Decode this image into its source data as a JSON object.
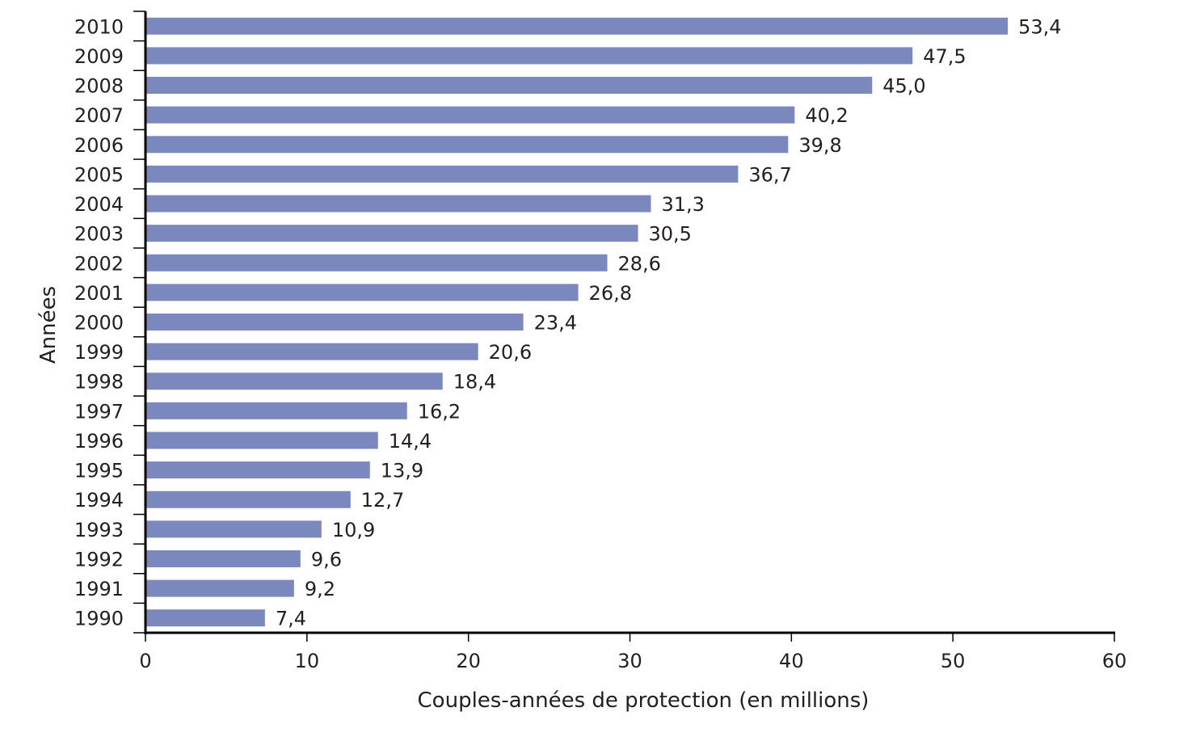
{
  "chart_data": {
    "type": "bar",
    "orientation": "horizontal",
    "title": "",
    "xlabel": "Couples-années de protection (en millions)",
    "ylabel": "Années",
    "xlim": [
      0,
      60
    ],
    "xticks": [
      0,
      10,
      20,
      30,
      40,
      50,
      60
    ],
    "categories": [
      "2010",
      "2009",
      "2008",
      "2007",
      "2006",
      "2005",
      "2004",
      "2003",
      "2002",
      "2001",
      "2000",
      "1999",
      "1998",
      "1997",
      "1996",
      "1995",
      "1994",
      "1993",
      "1992",
      "1991",
      "1990"
    ],
    "values": [
      53.4,
      47.5,
      45.0,
      40.2,
      39.8,
      36.7,
      31.3,
      30.5,
      28.6,
      26.8,
      23.4,
      20.6,
      18.4,
      16.2,
      14.4,
      13.9,
      12.7,
      10.9,
      9.6,
      9.2,
      7.4
    ],
    "data_labels": [
      "53,4",
      "47,5",
      "45,0",
      "40,2",
      "39,8",
      "36,7",
      "31,3",
      "30,5",
      "28,6",
      "26,8",
      "23,4",
      "20,6",
      "18,4",
      "16,2",
      "14,4",
      "13,9",
      "12,7",
      "10,9",
      "9,6",
      "9,2",
      "7,4"
    ],
    "bar_color": "#7b88bd",
    "grid": false,
    "legend": "none"
  }
}
